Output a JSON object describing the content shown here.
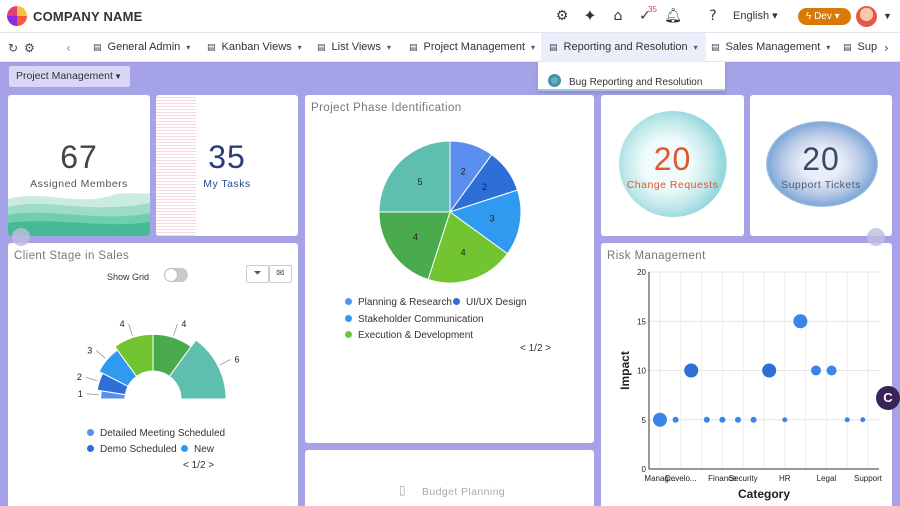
{
  "header": {
    "company_name": "COMPANY NAME",
    "notification_count": "35",
    "language": "English",
    "env_label": "Dev",
    "icons": [
      "gear-icon",
      "sparkle-icon",
      "store-icon",
      "tasks-check-icon",
      "bell-icon",
      "help-icon",
      "globe-icon"
    ]
  },
  "nav": {
    "tabs": [
      {
        "label": "General Admin",
        "icon": "tab-icon"
      },
      {
        "label": "Kanban Views",
        "icon": "tab-icon"
      },
      {
        "label": "List Views",
        "icon": "tab-icon"
      },
      {
        "label": "Project Management",
        "icon": "tab-icon"
      },
      {
        "label": "Reporting and Resolution",
        "icon": "tab-icon",
        "active": true
      },
      {
        "label": "Sales Management",
        "icon": "tab-icon"
      },
      {
        "label": "Sup",
        "icon": "tab-icon"
      }
    ],
    "dropdown_item": "Bug Reporting and Resolution"
  },
  "filter": {
    "selected": "Project Management"
  },
  "kpis": {
    "assigned": {
      "value": "67",
      "label": "Assigned Members"
    },
    "tasks": {
      "value": "35",
      "label": "My Tasks"
    },
    "change_requests": {
      "value": "20",
      "label": "Change Requests"
    },
    "support_tickets": {
      "value": "20",
      "label": "Support Tickets"
    }
  },
  "phase": {
    "title": "Project Phase Identification",
    "legend": [
      "Planning & Research",
      "UI/UX Design",
      "Stakeholder Communication",
      "Execution & Development"
    ],
    "pager": "< 1/2 >"
  },
  "client": {
    "title": "Client Stage in Sales",
    "show_grid_label": "Show Grid",
    "legend": [
      "Detailed Meeting Scheduled",
      "Demo Scheduled",
      "New"
    ],
    "pager": "< 1/2 >"
  },
  "budget": {
    "title": "Budget Planning"
  },
  "risk": {
    "title": "Risk Management"
  },
  "chart_data": [
    {
      "type": "pie",
      "title": "Project Phase Identification",
      "slices": [
        {
          "value": 2,
          "color": "#5a8ff0"
        },
        {
          "value": 2,
          "color": "#2d6fd6"
        },
        {
          "value": 3,
          "color": "#2f9bf0"
        },
        {
          "value": 4,
          "color": "#72c531"
        },
        {
          "value": 4,
          "color": "#4aab4e"
        },
        {
          "value": 5,
          "color": "#5fbfae"
        }
      ]
    },
    {
      "type": "pie",
      "title": "Client Stage in Sales",
      "variant": "half-donut",
      "slices": [
        {
          "value": 1,
          "color": "#5a8ff0"
        },
        {
          "value": 2,
          "color": "#2d6fd6"
        },
        {
          "value": 3,
          "color": "#2f9bf0"
        },
        {
          "value": 4,
          "color": "#72c531"
        },
        {
          "value": 4,
          "color": "#4aab4e"
        },
        {
          "value": 6,
          "color": "#5fbfae"
        }
      ]
    },
    {
      "type": "scatter",
      "title": "Risk Management",
      "xlabel": "Category",
      "ylabel": "Impact",
      "ylim": [
        0,
        20
      ],
      "yticks": [
        0,
        5,
        10,
        15,
        20
      ],
      "categories": [
        "Manag...",
        "Develo...",
        "",
        "Finance",
        "Security",
        "",
        "HR",
        "",
        "Legal",
        "",
        "Support"
      ],
      "points": [
        {
          "x": 0,
          "y": 5,
          "size": 7,
          "color": "#3a86e8"
        },
        {
          "x": 0.5,
          "y": 5,
          "size": 3,
          "color": "#3a86e8"
        },
        {
          "x": 1,
          "y": 10,
          "size": 7,
          "color": "#2d6fd6"
        },
        {
          "x": 1.5,
          "y": 5,
          "size": 3,
          "color": "#3a86e8"
        },
        {
          "x": 2,
          "y": 5,
          "size": 3,
          "color": "#3a86e8"
        },
        {
          "x": 2.5,
          "y": 5,
          "size": 3,
          "color": "#3a86e8"
        },
        {
          "x": 3,
          "y": 5,
          "size": 3,
          "color": "#3a86e8"
        },
        {
          "x": 3.5,
          "y": 10,
          "size": 7,
          "color": "#2d6fd6"
        },
        {
          "x": 4,
          "y": 5,
          "size": 2.5,
          "color": "#3a86e8"
        },
        {
          "x": 4.5,
          "y": 15,
          "size": 7,
          "color": "#3a86e8"
        },
        {
          "x": 5,
          "y": 10,
          "size": 5,
          "color": "#3a86e8"
        },
        {
          "x": 5.5,
          "y": 10,
          "size": 5,
          "color": "#3a86e8"
        },
        {
          "x": 6,
          "y": 5,
          "size": 2.5,
          "color": "#3a86e8"
        },
        {
          "x": 6.5,
          "y": 5,
          "size": 2.5,
          "color": "#3a86e8"
        }
      ]
    }
  ]
}
